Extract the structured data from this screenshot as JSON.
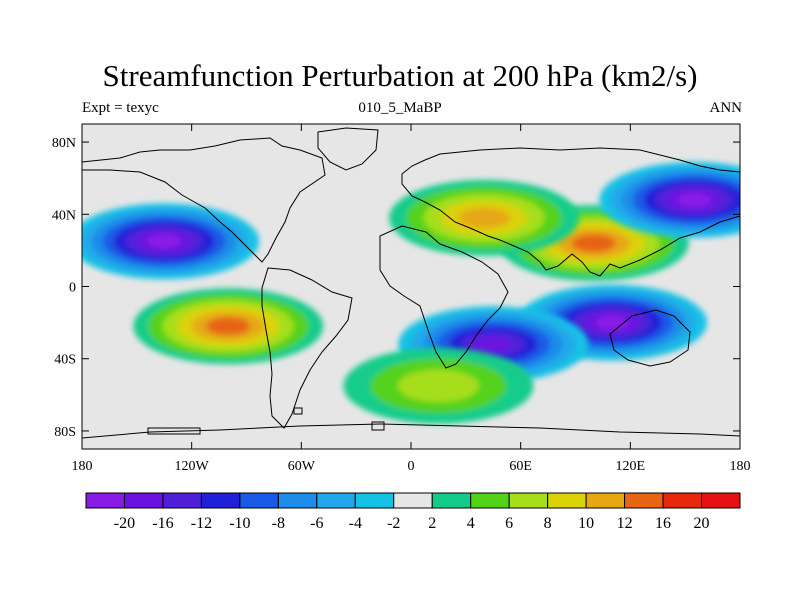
{
  "title": "Streamfunction Perturbation at 200 hPa (km2/s)",
  "subtitle_left": "Expt = texyc",
  "subtitle_center": "010_5_MaBP",
  "subtitle_right": "ANN",
  "axes": {
    "x_ticks": [
      "180",
      "120W",
      "60W",
      "0",
      "60E",
      "120E",
      "180"
    ],
    "y_ticks": [
      "80N",
      "40N",
      "0",
      "40S",
      "80S"
    ]
  },
  "colorbar": {
    "colors": [
      "#8a1ae6",
      "#6a12e0",
      "#5020d8",
      "#2020d8",
      "#1a5ae6",
      "#1e8ce8",
      "#22a8e8",
      "#14c2e6",
      "#e6e6e6",
      "#14cc8a",
      "#54d21a",
      "#a6de1a",
      "#dcd20a",
      "#e6a812",
      "#e66412",
      "#e6280e",
      "#e61212"
    ],
    "labels": [
      "-20",
      "-16",
      "-12",
      "-10",
      "-8",
      "-6",
      "-4",
      "-2",
      "2",
      "4",
      "6",
      "8",
      "10",
      "12",
      "16",
      "20"
    ]
  },
  "chart_data": {
    "type": "heatmap",
    "title": "Streamfunction Perturbation at 200 hPa (km2/s)",
    "x_range": [
      -180,
      180
    ],
    "y_range": [
      -90,
      90
    ],
    "levels": [
      -20,
      -16,
      -12,
      -10,
      -8,
      -6,
      -4,
      -2,
      2,
      4,
      6,
      8,
      10,
      12,
      16,
      20
    ],
    "features": [
      {
        "kind": "low",
        "lon": -135,
        "lat": 25,
        "value": -22
      },
      {
        "kind": "high",
        "lon": -100,
        "lat": -22,
        "value": 14
      },
      {
        "kind": "high",
        "lon": 100,
        "lat": 24,
        "value": 14
      },
      {
        "kind": "high",
        "lon": 40,
        "lat": 38,
        "value": 10
      },
      {
        "kind": "low",
        "lon": 110,
        "lat": -20,
        "value": -20
      },
      {
        "kind": "low",
        "lon": 45,
        "lat": -32,
        "value": -16
      },
      {
        "kind": "low",
        "lon": 155,
        "lat": 48,
        "value": -20
      },
      {
        "kind": "high",
        "lon": 15,
        "lat": -55,
        "value": 6
      }
    ]
  }
}
